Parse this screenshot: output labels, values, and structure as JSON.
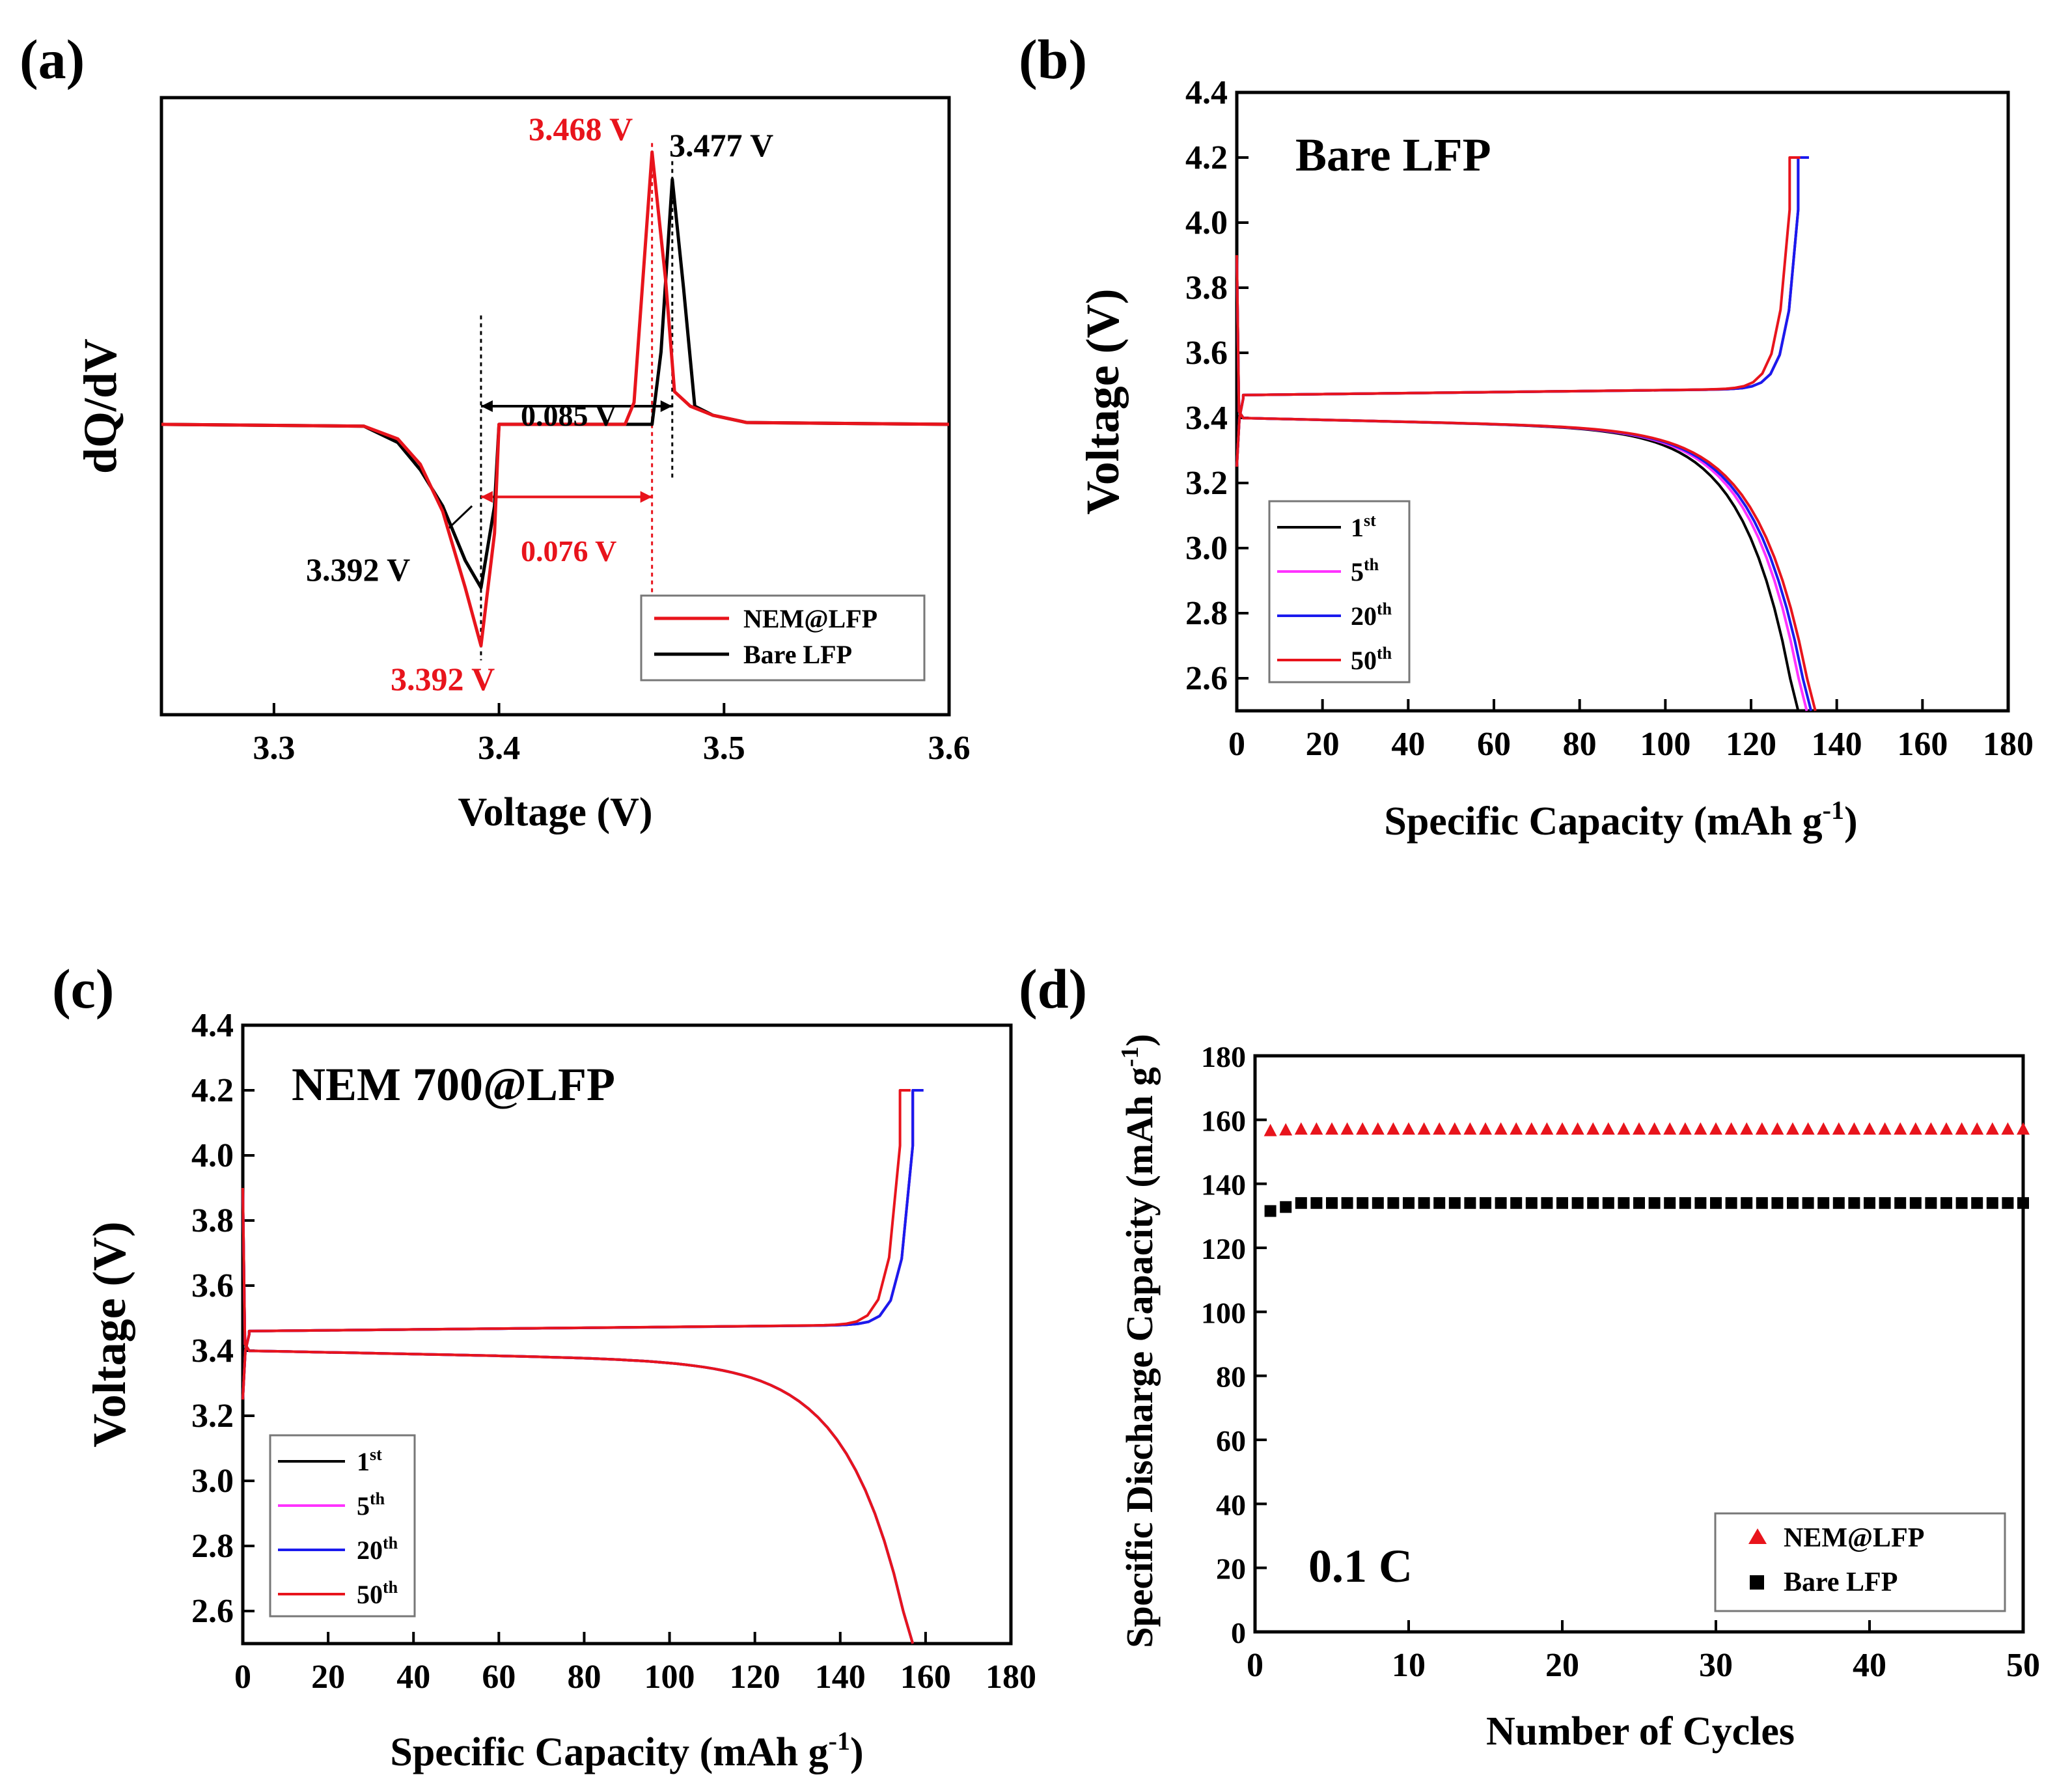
{
  "figure": {
    "colors": {
      "black": "#000000",
      "red": "#e8141c",
      "magenta": "#ff33ff",
      "blue": "#1a1aee"
    },
    "panels": [
      "(a)",
      "(b)",
      "(c)",
      "(d)"
    ]
  },
  "chart_data": [
    {
      "panel": "(a)",
      "type": "line",
      "xlabel": "Voltage (V)",
      "ylabel": "dQ/dV",
      "xlim": [
        3.25,
        3.6
      ],
      "ylim": [
        -1.6,
        1.8
      ],
      "xticks": [
        "3.3",
        "3.4",
        "3.5",
        "3.6"
      ],
      "series": [
        {
          "name": "NEM@LFP",
          "color": "#e8141c",
          "x": [
            3.25,
            3.34,
            3.355,
            3.365,
            3.375,
            3.385,
            3.392,
            3.398,
            3.4,
            3.456,
            3.46,
            3.468,
            3.474,
            3.478,
            3.485,
            3.495,
            3.51,
            3.6
          ],
          "y": [
            0,
            -0.01,
            -0.08,
            -0.22,
            -0.48,
            -0.9,
            -1.22,
            -0.6,
            0,
            0,
            0.12,
            1.5,
            0.8,
            0.18,
            0.1,
            0.05,
            0.01,
            0
          ]
        },
        {
          "name": "Bare LFP",
          "color": "#000000",
          "x": [
            3.25,
            3.34,
            3.355,
            3.365,
            3.375,
            3.385,
            3.392,
            3.398,
            3.4,
            3.46,
            3.468,
            3.472,
            3.477,
            3.482,
            3.487,
            3.495,
            3.51,
            3.6
          ],
          "y": [
            0,
            -0.01,
            -0.1,
            -0.25,
            -0.45,
            -0.75,
            -0.9,
            -0.45,
            0,
            0,
            0,
            0.4,
            1.35,
            0.75,
            0.1,
            0.05,
            0.01,
            0
          ]
        }
      ],
      "annotations": [
        {
          "text": "3.468 V",
          "color": "#e8141c"
        },
        {
          "text": "3.477 V",
          "color": "#000000"
        },
        {
          "text": "0.085 V",
          "color": "#000000"
        },
        {
          "text": "3.392 V",
          "color": "#000000"
        },
        {
          "text": "0.076 V",
          "color": "#e8141c"
        },
        {
          "text": "3.392 V",
          "color": "#e8141c"
        }
      ],
      "legend": {
        "position": "bottom-right",
        "entries": [
          "NEM@LFP",
          "Bare LFP"
        ]
      }
    },
    {
      "panel": "(b)",
      "type": "line",
      "title": "Bare LFP",
      "xlabel": "Specific Capacity (mAh g",
      "xlabel_sup": "-1",
      "xlabel_end": ")",
      "ylabel": "Voltage (V)",
      "xlim": [
        0,
        180
      ],
      "ylim": [
        2.5,
        4.4
      ],
      "xticks": [
        "0",
        "20",
        "40",
        "60",
        "80",
        "100",
        "120",
        "140",
        "160",
        "180"
      ],
      "yticks": [
        "2.6",
        "2.8",
        "3.0",
        "3.2",
        "3.4",
        "3.6",
        "3.8",
        "4.0",
        "4.2",
        "4.4"
      ],
      "series": [
        {
          "name": "1st",
          "color": "#000000",
          "charge_end": 131,
          "discharge_end": 131,
          "charge_plateau": 3.47,
          "discharge_plateau": 3.4
        },
        {
          "name": "5th",
          "color": "#ff33ff",
          "charge_end": 131,
          "discharge_end": 133,
          "charge_plateau": 3.47,
          "discharge_plateau": 3.4
        },
        {
          "name": "20th",
          "color": "#1a1aee",
          "charge_end": 131,
          "discharge_end": 134,
          "charge_plateau": 3.47,
          "discharge_plateau": 3.4
        },
        {
          "name": "50th",
          "color": "#e8141c",
          "charge_end": 129,
          "discharge_end": 135,
          "charge_plateau": 3.47,
          "discharge_plateau": 3.4
        }
      ],
      "legend": {
        "position": "bottom-left",
        "entries": [
          {
            "base": "1",
            "sup": "st"
          },
          {
            "base": "5",
            "sup": "th"
          },
          {
            "base": "20",
            "sup": "th"
          },
          {
            "base": "50",
            "sup": "th"
          }
        ]
      }
    },
    {
      "panel": "(c)",
      "type": "line",
      "title": "NEM 700@LFP",
      "xlabel": "Specific Capacity (mAh g",
      "xlabel_sup": "-1",
      "xlabel_end": ")",
      "ylabel": "Voltage (V)",
      "xlim": [
        0,
        180
      ],
      "ylim": [
        2.5,
        4.4
      ],
      "xticks": [
        "0",
        "20",
        "40",
        "60",
        "80",
        "100",
        "120",
        "140",
        "160",
        "180"
      ],
      "yticks": [
        "2.6",
        "2.8",
        "3.0",
        "3.2",
        "3.4",
        "3.6",
        "3.8",
        "4.0",
        "4.2",
        "4.4"
      ],
      "series": [
        {
          "name": "1st",
          "color": "#000000",
          "charge_end": 157,
          "discharge_end": 157,
          "charge_plateau": 3.46,
          "discharge_plateau": 3.4
        },
        {
          "name": "5th",
          "color": "#ff33ff",
          "charge_end": 157,
          "discharge_end": 157,
          "charge_plateau": 3.46,
          "discharge_plateau": 3.4
        },
        {
          "name": "20th",
          "color": "#1a1aee",
          "charge_end": 157,
          "discharge_end": 157,
          "charge_plateau": 3.46,
          "discharge_plateau": 3.4
        },
        {
          "name": "50th",
          "color": "#e8141c",
          "charge_end": 154,
          "discharge_end": 157,
          "charge_plateau": 3.46,
          "discharge_plateau": 3.4
        }
      ],
      "legend": {
        "position": "bottom-left",
        "entries": [
          {
            "base": "1",
            "sup": "st"
          },
          {
            "base": "5",
            "sup": "th"
          },
          {
            "base": "20",
            "sup": "th"
          },
          {
            "base": "50",
            "sup": "th"
          }
        ]
      }
    },
    {
      "panel": "(d)",
      "type": "scatter",
      "xlabel": "Number of Cycles",
      "ylabel": "Specific Discharge Capacity (mAh g",
      "ylabel_sup": "-1",
      "ylabel_end": ")",
      "xlim": [
        0,
        50
      ],
      "ylim": [
        0,
        180
      ],
      "xticks": [
        "0",
        "10",
        "20",
        "30",
        "40",
        "50"
      ],
      "yticks": [
        "0",
        "20",
        "40",
        "60",
        "80",
        "100",
        "120",
        "140",
        "160",
        "180"
      ],
      "annotation": "0.1 C",
      "series": [
        {
          "name": "NEM@LFP",
          "color": "#e8141c",
          "marker": "triangle",
          "start": 1,
          "end": 50,
          "first": 156.5,
          "value": 157
        },
        {
          "name": "Bare LFP",
          "color": "#000000",
          "marker": "square",
          "start": 1,
          "end": 50,
          "first": 131.5,
          "value": 134
        }
      ],
      "legend": {
        "position": "bottom-right",
        "entries": [
          "NEM@LFP",
          "Bare LFP"
        ]
      }
    }
  ]
}
